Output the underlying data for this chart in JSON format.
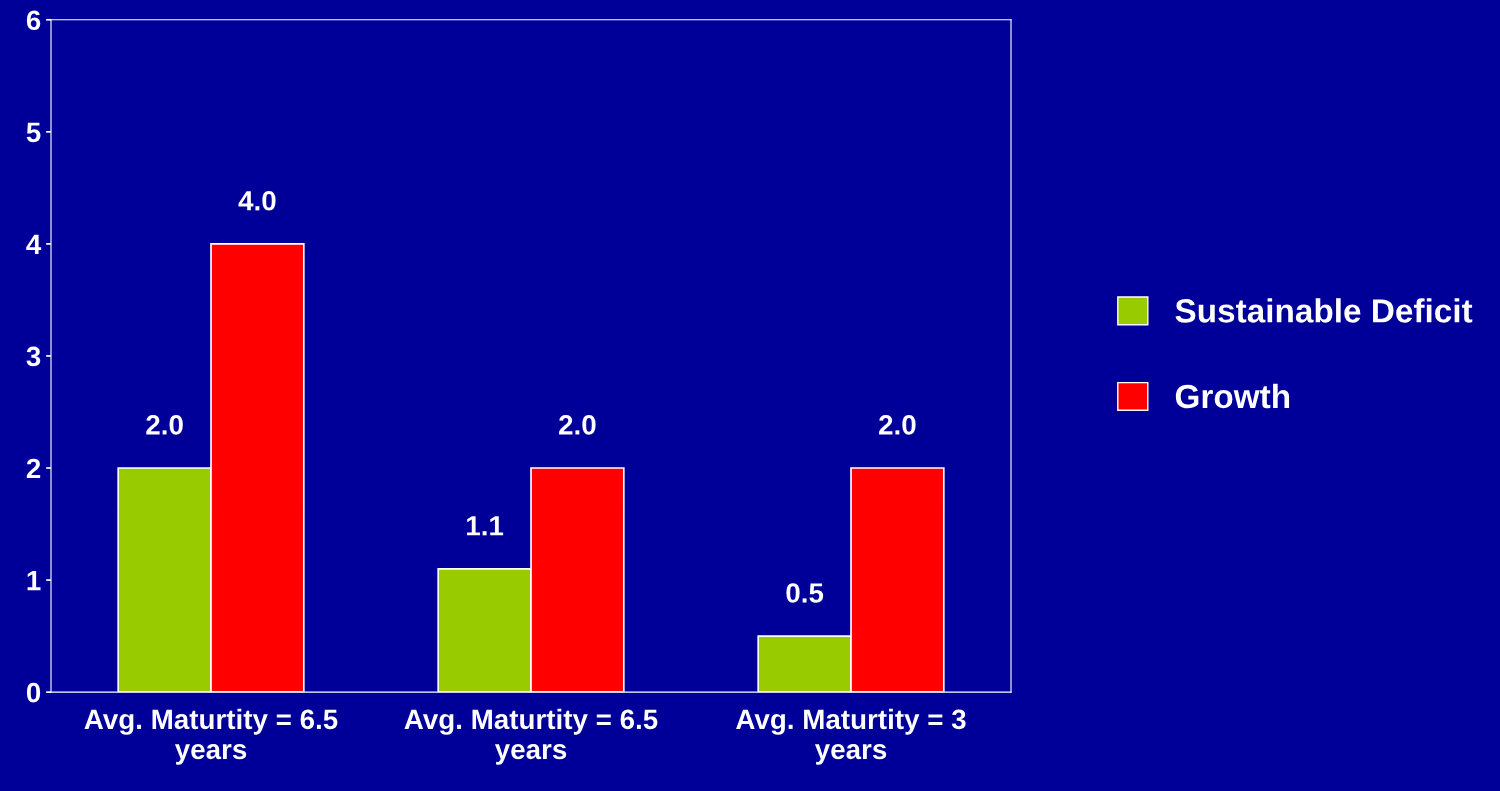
{
  "chart_data": {
    "type": "bar",
    "categories": [
      "Avg. Maturtity = 6.5\nyears",
      "Avg. Maturtity = 6.5\nyears",
      "Avg. Maturtity = 3\nyears"
    ],
    "series": [
      {
        "name": "Sustainable Deficit",
        "color": "#99cc00",
        "values": [
          2.0,
          1.1,
          0.5
        ],
        "value_labels": [
          "2.0",
          "1.1",
          "0.5"
        ]
      },
      {
        "name": "Growth",
        "color": "#ff0000",
        "values": [
          4.0,
          2.0,
          2.0
        ],
        "value_labels": [
          "4.0",
          "2.0",
          "2.0"
        ]
      }
    ],
    "ylim": [
      0,
      6
    ],
    "yticks": [
      0,
      1,
      2,
      3,
      4,
      5,
      6
    ],
    "grid": false,
    "legend": "right"
  }
}
